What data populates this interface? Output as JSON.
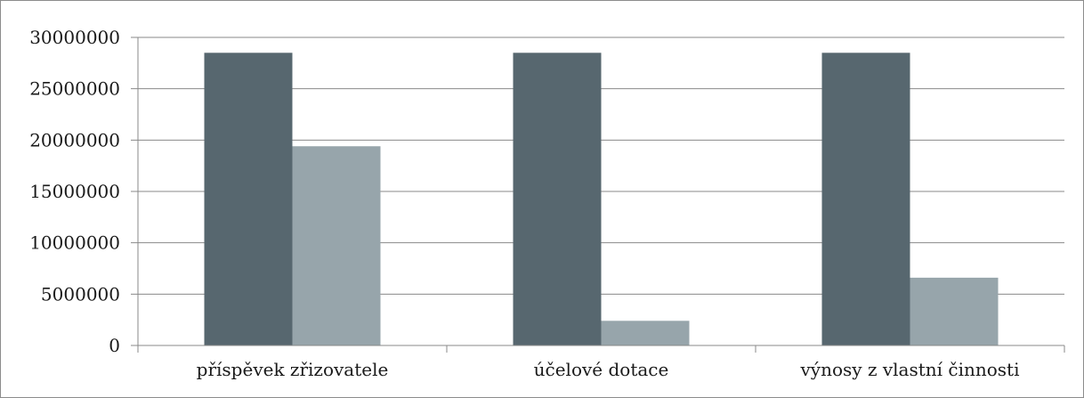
{
  "chart_data": {
    "type": "bar",
    "categories": [
      "příspěvek zřizovatele",
      "účelové dotace",
      "výnosy z vlastní činnosti"
    ],
    "series": [
      {
        "values": [
          28500000,
          28500000,
          28500000
        ],
        "color": "#57676f"
      },
      {
        "values": [
          19400000,
          2400000,
          6600000
        ],
        "color": "#97a5ab"
      }
    ],
    "ylim": [
      0,
      30000000
    ],
    "yticks": [
      "0",
      "5000000",
      "10000000",
      "15000000",
      "20000000",
      "25000000",
      "30000000"
    ],
    "grid": true,
    "legend": "none"
  }
}
